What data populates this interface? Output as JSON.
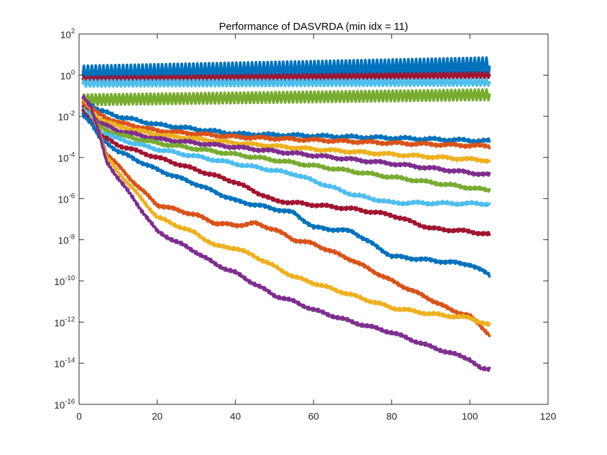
{
  "chart_data": {
    "type": "line",
    "title": "Performance of DASVRDA (min idx = 11)",
    "xlabel": "",
    "ylabel": "",
    "xlim": [
      0,
      120
    ],
    "ylim_exp": [
      -16,
      2
    ],
    "y_scale": "log",
    "grid": false,
    "legend": "none",
    "x_ticks": [
      "0",
      "20",
      "40",
      "60",
      "80",
      "100",
      "120"
    ],
    "y_ticks": [
      {
        "base": "10",
        "exp": "2"
      },
      {
        "base": "10",
        "exp": "0"
      },
      {
        "base": "10",
        "exp": "-2"
      },
      {
        "base": "10",
        "exp": "-4"
      },
      {
        "base": "10",
        "exp": "-6"
      },
      {
        "base": "10",
        "exp": "-8"
      },
      {
        "base": "10",
        "exp": "-10"
      },
      {
        "base": "10",
        "exp": "-12"
      },
      {
        "base": "10",
        "exp": "-14"
      },
      {
        "base": "10",
        "exp": "-16"
      }
    ],
    "series": [
      {
        "color": "#0072BD",
        "osc": 0.45,
        "points": [
          [
            1,
            0.0
          ],
          [
            105,
            0.4
          ]
        ]
      },
      {
        "color": "#A2142F",
        "osc": 0.12,
        "points": [
          [
            1,
            -0.2
          ],
          [
            105,
            0.0
          ]
        ]
      },
      {
        "color": "#4DBEEE",
        "osc": 0.15,
        "points": [
          [
            1,
            -0.4
          ],
          [
            105,
            -0.35
          ]
        ]
      },
      {
        "color": "#77AC30",
        "osc": 0.25,
        "points": [
          [
            1,
            -1.2
          ],
          [
            105,
            -0.95
          ]
        ]
      },
      {
        "color": "#0072BD",
        "osc": 0,
        "points": [
          [
            1,
            -1.2
          ],
          [
            3,
            -1.4
          ],
          [
            5,
            -1.7
          ],
          [
            10,
            -2.0
          ],
          [
            20,
            -2.4
          ],
          [
            40,
            -2.85
          ],
          [
            60,
            -2.95
          ],
          [
            80,
            -3.05
          ],
          [
            105,
            -3.2
          ]
        ]
      },
      {
        "color": "#D95319",
        "osc": 0,
        "points": [
          [
            1,
            -1.3
          ],
          [
            3,
            -1.55
          ],
          [
            5,
            -1.9
          ],
          [
            10,
            -2.3
          ],
          [
            20,
            -2.7
          ],
          [
            40,
            -3.0
          ],
          [
            60,
            -3.15
          ],
          [
            80,
            -3.3
          ],
          [
            105,
            -3.45
          ]
        ]
      },
      {
        "color": "#EDB120",
        "osc": 0,
        "points": [
          [
            1,
            -1.4
          ],
          [
            3,
            -1.7
          ],
          [
            5,
            -2.1
          ],
          [
            10,
            -2.5
          ],
          [
            20,
            -2.9
          ],
          [
            40,
            -3.3
          ],
          [
            60,
            -3.6
          ],
          [
            80,
            -3.85
          ],
          [
            105,
            -4.15
          ]
        ]
      },
      {
        "color": "#7E2F8E",
        "osc": 0,
        "points": [
          [
            1,
            -1.5
          ],
          [
            3,
            -1.8
          ],
          [
            5,
            -2.3
          ],
          [
            10,
            -2.7
          ],
          [
            20,
            -3.1
          ],
          [
            40,
            -3.5
          ],
          [
            60,
            -3.9
          ],
          [
            80,
            -4.3
          ],
          [
            105,
            -4.85
          ]
        ]
      },
      {
        "color": "#77AC30",
        "osc": 0,
        "points": [
          [
            1,
            -1.6
          ],
          [
            3,
            -1.9
          ],
          [
            5,
            -2.5
          ],
          [
            10,
            -2.9
          ],
          [
            20,
            -3.3
          ],
          [
            40,
            -3.85
          ],
          [
            60,
            -4.4
          ],
          [
            80,
            -4.95
          ],
          [
            105,
            -5.6
          ]
        ]
      },
      {
        "color": "#4DBEEE",
        "osc": 0,
        "points": [
          [
            1,
            -1.7
          ],
          [
            3,
            -2.0
          ],
          [
            5,
            -2.7
          ],
          [
            10,
            -3.1
          ],
          [
            20,
            -3.6
          ],
          [
            40,
            -4.3
          ],
          [
            55,
            -4.8
          ],
          [
            70,
            -5.8
          ],
          [
            80,
            -6.2
          ],
          [
            105,
            -6.25
          ]
        ]
      },
      {
        "color": "#A2142F",
        "osc": 0,
        "points": [
          [
            1,
            -1.8
          ],
          [
            3,
            -2.2
          ],
          [
            5,
            -2.9
          ],
          [
            10,
            -3.4
          ],
          [
            20,
            -4.0
          ],
          [
            30,
            -4.6
          ],
          [
            40,
            -5.2
          ],
          [
            50,
            -6.1
          ],
          [
            60,
            -6.3
          ],
          [
            70,
            -6.5
          ],
          [
            80,
            -6.8
          ],
          [
            90,
            -7.45
          ],
          [
            100,
            -7.6
          ],
          [
            105,
            -7.75
          ]
        ]
      },
      {
        "color": "#0072BD",
        "osc": 0,
        "points": [
          [
            1,
            -1.9
          ],
          [
            3,
            -2.3
          ],
          [
            5,
            -3.0
          ],
          [
            10,
            -3.7
          ],
          [
            20,
            -4.6
          ],
          [
            30,
            -5.3
          ],
          [
            40,
            -6.1
          ],
          [
            50,
            -6.5
          ],
          [
            55,
            -6.7
          ],
          [
            60,
            -7.4
          ],
          [
            70,
            -7.6
          ],
          [
            80,
            -8.8
          ],
          [
            90,
            -9.0
          ],
          [
            100,
            -9.2
          ],
          [
            105,
            -9.7
          ]
        ]
      },
      {
        "color": "#D95319",
        "osc": 0,
        "points": [
          [
            1,
            -1.3
          ],
          [
            3,
            -1.7
          ],
          [
            5,
            -2.6
          ],
          [
            7,
            -3.8
          ],
          [
            10,
            -4.4
          ],
          [
            15,
            -5.4
          ],
          [
            20,
            -6.3
          ],
          [
            30,
            -6.8
          ],
          [
            35,
            -7.2
          ],
          [
            40,
            -7.3
          ],
          [
            45,
            -7.2
          ],
          [
            50,
            -7.5
          ],
          [
            55,
            -8.0
          ],
          [
            60,
            -8.2
          ],
          [
            70,
            -9.0
          ],
          [
            80,
            -10.0
          ],
          [
            90,
            -10.9
          ],
          [
            95,
            -11.4
          ],
          [
            100,
            -11.7
          ],
          [
            105,
            -12.6
          ]
        ]
      },
      {
        "color": "#EDB120",
        "osc": 0,
        "points": [
          [
            1,
            -1.2
          ],
          [
            3,
            -1.6
          ],
          [
            5,
            -2.7
          ],
          [
            7,
            -4.0
          ],
          [
            10,
            -4.7
          ],
          [
            15,
            -5.8
          ],
          [
            20,
            -6.9
          ],
          [
            30,
            -7.7
          ],
          [
            35,
            -8.3
          ],
          [
            40,
            -8.4
          ],
          [
            45,
            -8.8
          ],
          [
            50,
            -9.3
          ],
          [
            55,
            -9.8
          ],
          [
            60,
            -10.1
          ],
          [
            70,
            -10.7
          ],
          [
            80,
            -11.3
          ],
          [
            90,
            -11.6
          ],
          [
            100,
            -11.8
          ],
          [
            105,
            -12.15
          ]
        ]
      },
      {
        "color": "#7E2F8E",
        "osc": 0,
        "points": [
          [
            1,
            -1.0
          ],
          [
            3,
            -1.5
          ],
          [
            5,
            -2.8
          ],
          [
            7,
            -4.2
          ],
          [
            10,
            -5.0
          ],
          [
            15,
            -6.3
          ],
          [
            20,
            -7.6
          ],
          [
            30,
            -8.6
          ],
          [
            35,
            -9.2
          ],
          [
            40,
            -9.6
          ],
          [
            50,
            -10.7
          ],
          [
            55,
            -11.0
          ],
          [
            60,
            -11.4
          ],
          [
            70,
            -12.0
          ],
          [
            80,
            -12.5
          ],
          [
            90,
            -13.2
          ],
          [
            100,
            -13.8
          ],
          [
            103,
            -14.3
          ],
          [
            105,
            -14.3
          ]
        ]
      }
    ]
  }
}
